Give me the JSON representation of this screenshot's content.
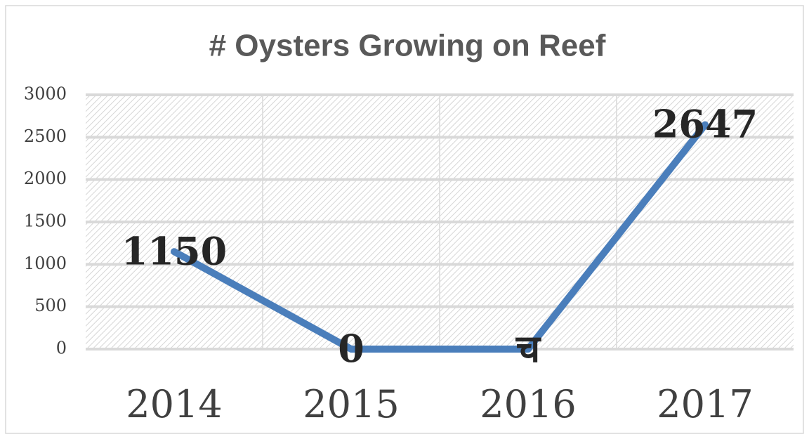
{
  "chart_data": {
    "type": "line",
    "title": "# Oysters Growing on Reef",
    "categories": [
      "2014",
      "2015",
      "2016",
      "2017"
    ],
    "values": [
      1150,
      0,
      0,
      2647
    ],
    "value_labels": [
      "1150",
      "0",
      "च",
      "2647"
    ],
    "color": "#4a7ebb",
    "ylim": [
      0,
      3000
    ],
    "yticks": [
      0,
      500,
      1000,
      1500,
      2000,
      2500,
      3000
    ],
    "grid": true
  }
}
